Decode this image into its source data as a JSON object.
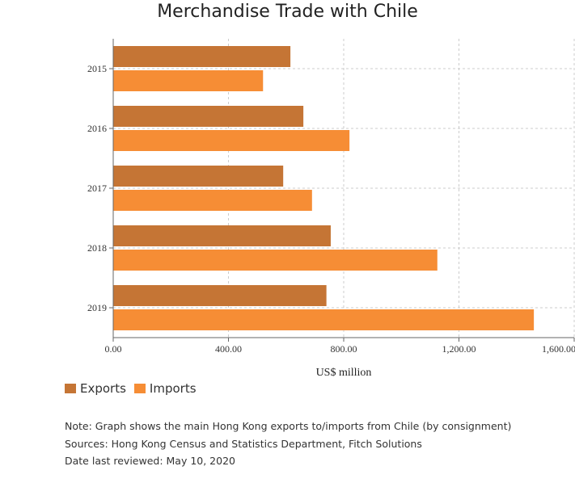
{
  "chart_data": {
    "type": "bar",
    "orientation": "horizontal",
    "title": "Merchandise Trade with Chile",
    "xlabel": "US$ million",
    "ylabel": "",
    "categories": [
      "2015",
      "2016",
      "2017",
      "2018",
      "2019"
    ],
    "series": [
      {
        "name": "Exports",
        "color": "#c57535",
        "values": [
          615,
          660,
          590,
          755,
          740
        ]
      },
      {
        "name": "Imports",
        "color": "#f68d35",
        "values": [
          520,
          820,
          690,
          1125,
          1460
        ]
      }
    ],
    "xlim": [
      0,
      1600
    ],
    "xticks": [
      0,
      400,
      800,
      1200,
      1600
    ],
    "xtick_labels": [
      "0.00",
      "400.00",
      "800.00",
      "1,200.00",
      "1,600.00"
    ],
    "grid": true,
    "legend_position": "bottom-left"
  },
  "notes": [
    "Note: Graph shows the main Hong Kong exports to/imports from Chile (by consignment)",
    "Sources: Hong Kong Census and Statistics Department, Fitch Solutions",
    "Date last reviewed: May 10, 2020"
  ]
}
